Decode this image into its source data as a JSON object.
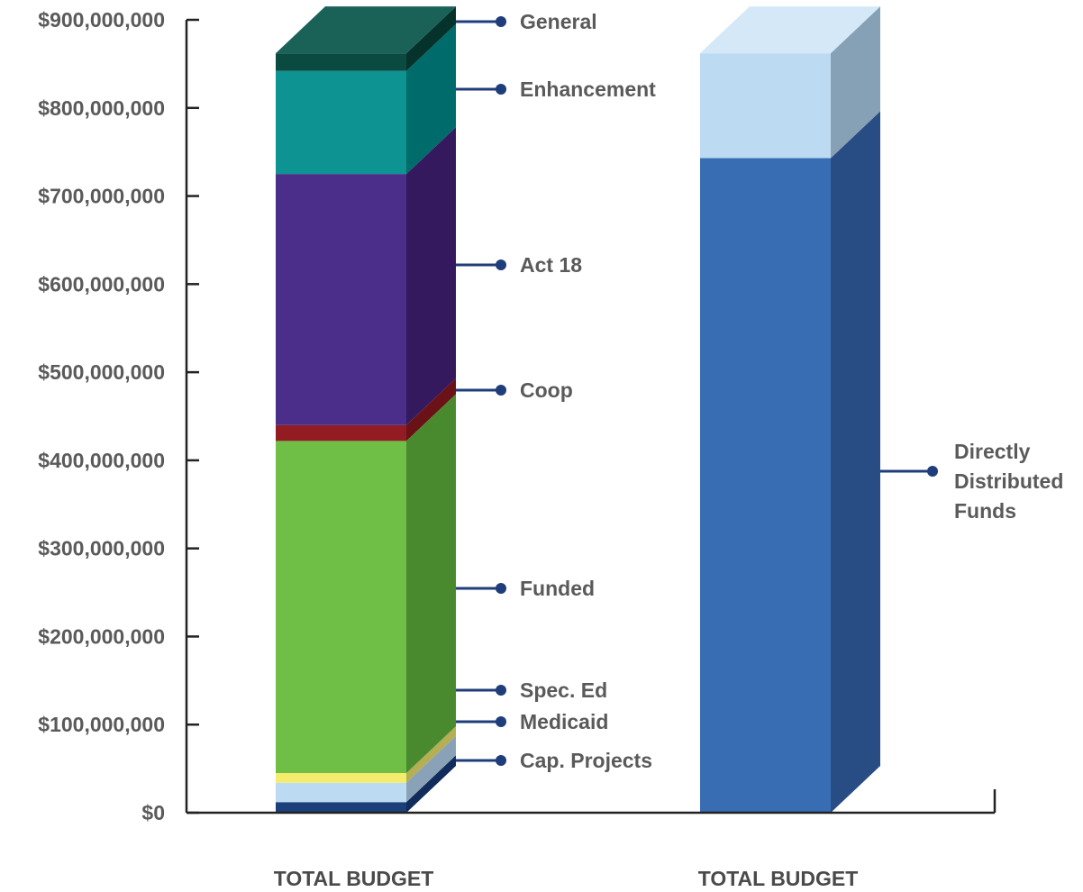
{
  "chart_data": {
    "type": "bar",
    "stacked": true,
    "style": "3d",
    "ylim": [
      0,
      900000000
    ],
    "yticks": [
      0,
      100000000,
      200000000,
      300000000,
      400000000,
      500000000,
      600000000,
      700000000,
      800000000,
      900000000
    ],
    "ytick_labels": [
      "$0",
      "$100,000,000",
      "$200,000,000",
      "$300,000,000",
      "$400,000,000",
      "$500,000,000",
      "$600,000,000",
      "$700,000,000",
      "$800,000,000",
      "$900,000,000"
    ],
    "categories": [
      "TOTAL BUDGET",
      "TOTAL BUDGET"
    ],
    "bars": [
      {
        "category": "TOTAL BUDGET",
        "segments": [
          {
            "name": "Cap. Projects",
            "value": 12000000,
            "front": "#1a3f7a",
            "side": "#112c5a",
            "top": "#24508f"
          },
          {
            "name": "Medicaid",
            "value": 22000000,
            "front": "#bcdaf1",
            "side": "#8aa2b8",
            "top": "#d3e8f7"
          },
          {
            "name": "Spec. Ed",
            "value": 11000000,
            "front": "#f4ec6c",
            "side": "#b4ae54",
            "top": "#f8f29a"
          },
          {
            "name": "Funded",
            "value": 377000000,
            "front": "#6fbe45",
            "side": "#4a8a2e",
            "top": "#86cf5f"
          },
          {
            "name": "Coop",
            "value": 18000000,
            "front": "#921c21",
            "side": "#6a1216",
            "top": "#a93036"
          },
          {
            "name": "Act 18",
            "value": 285000000,
            "front": "#4a2e8a",
            "side": "#35195e",
            "top": "#5a3e9c"
          },
          {
            "name": "Enhancement",
            "value": 117000000,
            "front": "#0e9393",
            "side": "#006b6b",
            "top": "#1aa5a5"
          },
          {
            "name": "General",
            "value": 20000000,
            "front": "#0b4a40",
            "side": "#05332c",
            "top": "#1a6258"
          }
        ]
      },
      {
        "category": "TOTAL BUDGET",
        "segments": [
          {
            "name": "Directly Distributed Funds",
            "value": 743000000,
            "front": "#386db4",
            "side": "#284c84",
            "top": "#4a7fc4"
          },
          {
            "name": "",
            "value": 119000000,
            "front": "#bcdaf1",
            "side": "#86a0b5",
            "top": "#d4e8f8"
          }
        ]
      }
    ],
    "annotations": [
      {
        "text": [
          "General"
        ],
        "series": "General"
      },
      {
        "text": [
          "Enhancement"
        ],
        "series": "Enhancement"
      },
      {
        "text": [
          "Act 18"
        ],
        "series": "Act 18"
      },
      {
        "text": [
          "Coop"
        ],
        "series": "Coop"
      },
      {
        "text": [
          "Funded"
        ],
        "series": "Funded"
      },
      {
        "text": [
          "Spec. Ed"
        ],
        "series": "Spec. Ed"
      },
      {
        "text": [
          "Medicaid"
        ],
        "series": "Medicaid"
      },
      {
        "text": [
          "Cap. Projects"
        ],
        "series": "Cap. Projects"
      },
      {
        "text": [
          "Directly",
          "Distributed",
          "Funds"
        ],
        "series": "Directly Distributed Funds"
      }
    ],
    "axis_color": "#222222",
    "leader_color": "#1f3d7a",
    "grid": false
  }
}
